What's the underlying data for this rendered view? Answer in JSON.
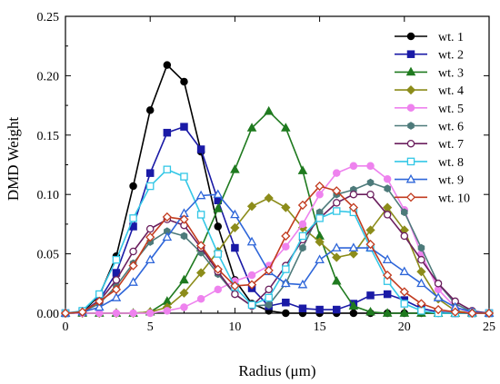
{
  "chart_data": {
    "type": "line",
    "xlabel": "Radius (μm)",
    "ylabel": "DMD Weight",
    "xlim": [
      0,
      25
    ],
    "ylim": [
      0,
      0.25
    ],
    "x_ticks": [
      "0",
      "5",
      "10",
      "15",
      "20",
      "25"
    ],
    "y_ticks": [
      "0.00",
      "0.05",
      "0.10",
      "0.15",
      "0.20",
      "0.25"
    ],
    "grid": false,
    "legend_position": "top-right",
    "x": [
      0,
      1,
      2,
      3,
      4,
      5,
      6,
      7,
      8,
      9,
      10,
      11,
      12,
      13,
      14,
      15,
      16,
      17,
      18,
      19,
      20,
      21,
      22,
      23,
      24,
      25
    ],
    "series": [
      {
        "name": "wt. 1",
        "color": "#000000",
        "marker": "circle",
        "fill": "filled",
        "values": [
          0,
          0.001,
          0.015,
          0.048,
          0.107,
          0.171,
          0.209,
          0.195,
          0.136,
          0.073,
          0.028,
          0.008,
          0.002,
          0,
          0,
          0,
          0,
          0,
          0,
          0,
          0,
          0,
          0,
          0,
          0,
          0
        ]
      },
      {
        "name": "wt. 2",
        "color": "#1a1aa6",
        "marker": "square",
        "fill": "filled",
        "values": [
          0,
          0.001,
          0.011,
          0.034,
          0.073,
          0.118,
          0.152,
          0.157,
          0.138,
          0.095,
          0.055,
          0.021,
          0.006,
          0.009,
          0.004,
          0.003,
          0.003,
          0.008,
          0.015,
          0.016,
          0.011,
          0.004,
          0.001,
          0,
          0,
          0
        ]
      },
      {
        "name": "wt. 3",
        "color": "#1f7a1f",
        "marker": "triangle",
        "fill": "filled",
        "values": [
          0,
          0,
          0,
          0,
          0,
          0.001,
          0.01,
          0.028,
          0.055,
          0.088,
          0.121,
          0.156,
          0.17,
          0.156,
          0.12,
          0.065,
          0.027,
          0.006,
          0.001,
          0,
          0,
          0,
          0,
          0,
          0,
          0
        ]
      },
      {
        "name": "wt. 4",
        "color": "#8c8c1a",
        "marker": "diamond",
        "fill": "filled",
        "values": [
          0,
          0,
          0,
          0,
          0,
          0.001,
          0.005,
          0.017,
          0.034,
          0.052,
          0.072,
          0.09,
          0.097,
          0.089,
          0.072,
          0.06,
          0.047,
          0.05,
          0.07,
          0.089,
          0.07,
          0.035,
          0.012,
          0.002,
          0,
          0
        ]
      },
      {
        "name": "wt. 5",
        "color": "#ee82ee",
        "marker": "circle",
        "fill": "filled",
        "values": [
          0,
          0,
          0,
          0,
          0,
          0,
          0.002,
          0.005,
          0.012,
          0.02,
          0.027,
          0.032,
          0.04,
          0.056,
          0.075,
          0.1,
          0.118,
          0.124,
          0.124,
          0.113,
          0.087,
          0.05,
          0.02,
          0.005,
          0,
          0
        ]
      },
      {
        "name": "wt. 6",
        "color": "#4d7a7a",
        "marker": "hexagon",
        "fill": "filled",
        "values": [
          0,
          0.001,
          0.008,
          0.023,
          0.042,
          0.06,
          0.069,
          0.065,
          0.051,
          0.033,
          0.016,
          0.006,
          0.007,
          0.025,
          0.055,
          0.085,
          0.1,
          0.104,
          0.11,
          0.105,
          0.085,
          0.055,
          0.025,
          0.008,
          0.001,
          0
        ]
      },
      {
        "name": "wt. 7",
        "color": "#6b1f5e",
        "marker": "circle",
        "fill": "open",
        "values": [
          0,
          0.001,
          0.01,
          0.028,
          0.052,
          0.071,
          0.079,
          0.074,
          0.055,
          0.035,
          0.016,
          0.006,
          0.02,
          0.04,
          0.062,
          0.08,
          0.093,
          0.1,
          0.1,
          0.083,
          0.065,
          0.045,
          0.025,
          0.01,
          0.002,
          0
        ]
      },
      {
        "name": "wt. 8",
        "color": "#33c7e6",
        "marker": "square",
        "fill": "open",
        "values": [
          0,
          0.002,
          0.016,
          0.045,
          0.08,
          0.107,
          0.121,
          0.115,
          0.083,
          0.05,
          0.022,
          0.007,
          0.013,
          0.037,
          0.065,
          0.08,
          0.086,
          0.085,
          0.055,
          0.027,
          0.008,
          0.002,
          0,
          0,
          0,
          0
        ]
      },
      {
        "name": "wt. 9",
        "color": "#2e66d9",
        "marker": "triangle",
        "fill": "open",
        "values": [
          0,
          0.001,
          0.005,
          0.013,
          0.026,
          0.045,
          0.064,
          0.084,
          0.099,
          0.1,
          0.083,
          0.06,
          0.035,
          0.025,
          0.024,
          0.045,
          0.055,
          0.055,
          0.055,
          0.045,
          0.035,
          0.025,
          0.013,
          0.005,
          0.001,
          0
        ]
      },
      {
        "name": "wt. 10",
        "color": "#c23b1f",
        "marker": "diamond",
        "fill": "open",
        "values": [
          0,
          0.001,
          0.01,
          0.02,
          0.04,
          0.064,
          0.081,
          0.079,
          0.057,
          0.037,
          0.023,
          0.024,
          0.036,
          0.065,
          0.091,
          0.107,
          0.103,
          0.089,
          0.058,
          0.032,
          0.018,
          0.008,
          0.003,
          0.001,
          0,
          0
        ]
      }
    ]
  }
}
